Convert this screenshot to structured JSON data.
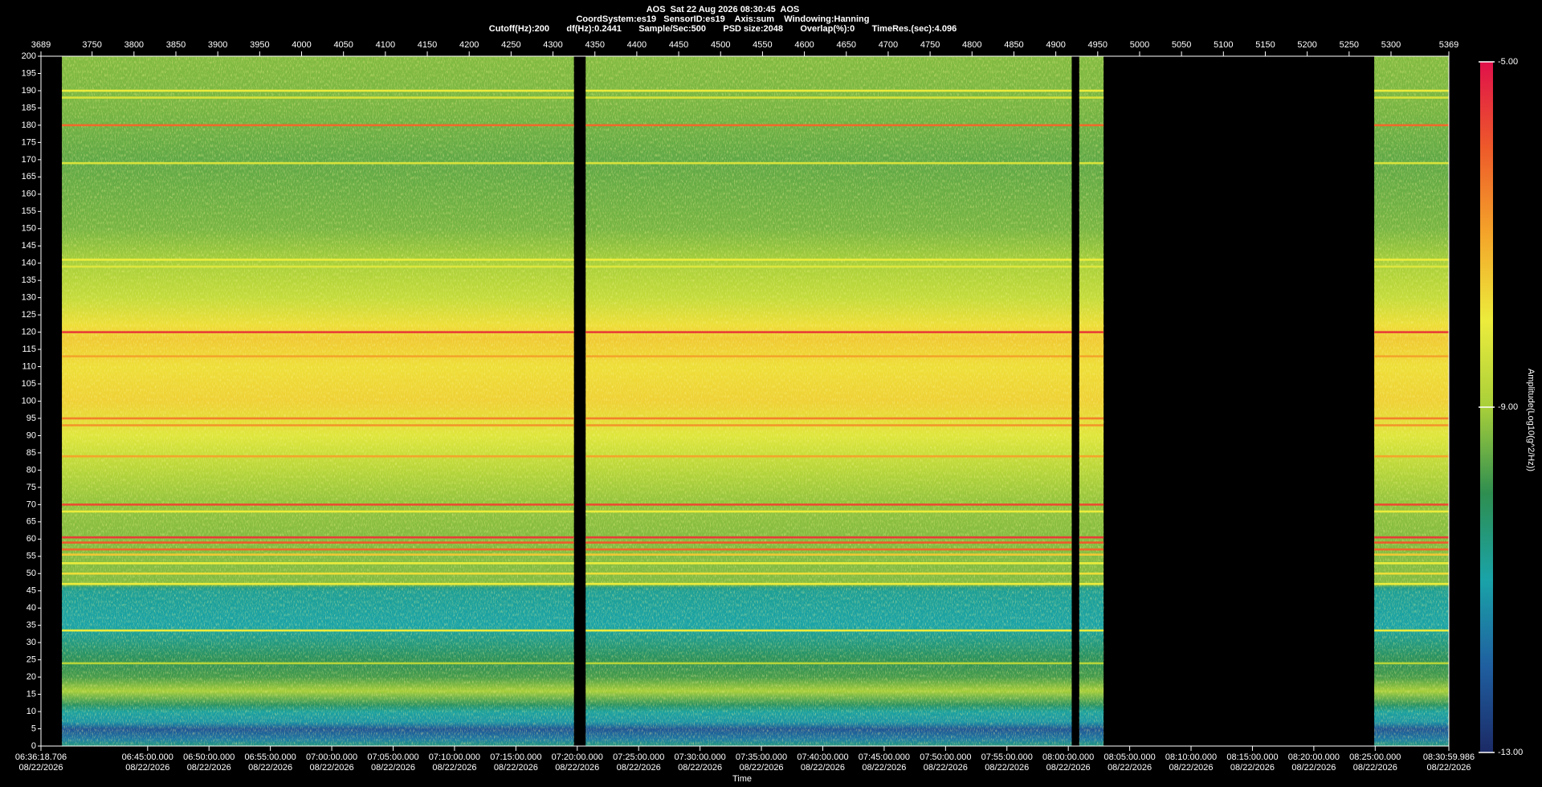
{
  "chart_data": {
    "type": "spectrogram",
    "title": "AOS  Sat 22 Aug 2026 08:30:45  AOS",
    "subtitle": [
      "CoordSystem:es19   SensorID:es19    Axis:sum    Windowing:Hanning",
      "Cutoff(Hz):200       df(Hz):0.2441       Sample/Sec:500       PSD size:2048       Overlap(%):0       TimeRes.(sec):4.096"
    ],
    "x_label": "Time",
    "colorbar_label": "Amplitude(Log10(g^2/Hz))",
    "xlim": [
      3689,
      5369
    ],
    "xticks": [
      3689,
      3750,
      3800,
      3850,
      3900,
      3950,
      4000,
      4050,
      4100,
      4150,
      4200,
      4250,
      4300,
      4350,
      4400,
      4450,
      4500,
      4550,
      4600,
      4650,
      4700,
      4750,
      4800,
      4850,
      4900,
      4950,
      5000,
      5050,
      5100,
      5150,
      5200,
      5250,
      5300,
      5369
    ],
    "x2ticks": [
      {
        "value": 3689,
        "label": "06:36:18.706"
      },
      {
        "value": 3816.27,
        "label": "06:45:00.000"
      },
      {
        "value": 3889.51,
        "label": "06:50:00.000"
      },
      {
        "value": 3962.75,
        "label": "06:55:00.000"
      },
      {
        "value": 4035.99,
        "label": "07:00:00.000"
      },
      {
        "value": 4109.24,
        "label": "07:05:00.000"
      },
      {
        "value": 4182.48,
        "label": "07:10:00.000"
      },
      {
        "value": 4255.72,
        "label": "07:15:00.000"
      },
      {
        "value": 4328.96,
        "label": "07:20:00.000"
      },
      {
        "value": 4402.21,
        "label": "07:25:00.000"
      },
      {
        "value": 4475.45,
        "label": "07:30:00.000"
      },
      {
        "value": 4548.69,
        "label": "07:35:00.000"
      },
      {
        "value": 4621.93,
        "label": "07:40:00.000"
      },
      {
        "value": 4695.18,
        "label": "07:45:00.000"
      },
      {
        "value": 4768.42,
        "label": "07:50:00.000"
      },
      {
        "value": 4841.66,
        "label": "07:55:00.000"
      },
      {
        "value": 4914.9,
        "label": "08:00:00.000"
      },
      {
        "value": 4988.15,
        "label": "08:05:00.000"
      },
      {
        "value": 5061.39,
        "label": "08:10:00.000"
      },
      {
        "value": 5134.63,
        "label": "08:15:00.000"
      },
      {
        "value": 5207.87,
        "label": "08:20:00.000"
      },
      {
        "value": 5281.12,
        "label": "08:25:00.000"
      },
      {
        "value": 5369,
        "label": "08:30:59.986"
      }
    ],
    "x2tick_dates": [
      "08/22/2026",
      "08/22/2026",
      "08/22/2026",
      "08/22/2026",
      "08/22/2026",
      "08/22/2026",
      "08/22/2026",
      "08/22/2026",
      "08/22/2026",
      "08/22/2026",
      "08/22/2026",
      "08/22/2026",
      "08/22/2026",
      "08/22/2026",
      "08/22/2026",
      "08/22/2026",
      "08/22/2026",
      "08/22/2026",
      "08/22/2026",
      "08/22/2026",
      "08/22/2026",
      "08/22/2026",
      "08/22/2026"
    ],
    "ylim": [
      0,
      200
    ],
    "yticks": [
      0,
      5,
      10,
      15,
      20,
      25,
      30,
      35,
      40,
      45,
      50,
      55,
      60,
      65,
      70,
      75,
      80,
      85,
      90,
      95,
      100,
      105,
      110,
      115,
      120,
      125,
      130,
      135,
      140,
      145,
      150,
      155,
      160,
      165,
      170,
      175,
      180,
      185,
      190,
      195,
      200
    ],
    "segments": [
      [
        3714,
        4325
      ],
      [
        4339,
        4919
      ],
      [
        4928,
        4957
      ],
      [
        5280,
        5369
      ]
    ],
    "profile": {
      "freq": [
        0,
        2,
        5,
        7,
        10,
        12,
        16,
        20,
        25,
        35,
        45,
        46,
        47,
        60,
        70,
        80,
        90,
        100,
        110,
        118,
        122,
        130,
        140,
        150,
        170,
        185,
        200
      ],
      "amp": [
        -10.5,
        -11.6,
        -12.2,
        -11.2,
        -10.9,
        -10.2,
        -9.0,
        -9.8,
        -10.1,
        -11.0,
        -10.8,
        -10.6,
        -9.3,
        -9.3,
        -9.2,
        -8.8,
        -8.2,
        -7.6,
        -7.8,
        -7.5,
        -7.8,
        -8.6,
        -9.0,
        -9.4,
        -9.6,
        -9.4,
        -9.3
      ]
    },
    "lines": {
      "freq": [
        190,
        188,
        180,
        169,
        141,
        139,
        120,
        113,
        95,
        93,
        84,
        70,
        68,
        60.5,
        59,
        57,
        55.5,
        53,
        50,
        47,
        33.5,
        24
      ],
      "amp": [
        -8.0,
        -8.3,
        -6.2,
        -8.3,
        -8.0,
        -8.2,
        -5.6,
        -7.0,
        -6.5,
        -6.8,
        -7.0,
        -5.8,
        -8.0,
        -5.6,
        -6.0,
        -6.2,
        -7.5,
        -8.0,
        -7.8,
        -8.0,
        -8.0,
        -8.8
      ]
    },
    "clim": [
      -13,
      -5
    ],
    "cticks": [
      {
        "value": -13,
        "label": "-13.00"
      },
      {
        "value": -9,
        "label": "-9.00"
      },
      {
        "value": -5,
        "label": "-5.00"
      }
    ],
    "colormap": [
      "#1b2a66",
      "#1f5fa0",
      "#1aa3a8",
      "#2e8e50",
      "#a8cf3a",
      "#ecec3c",
      "#f4a52a",
      "#ee5a2a",
      "#e0104a"
    ]
  }
}
